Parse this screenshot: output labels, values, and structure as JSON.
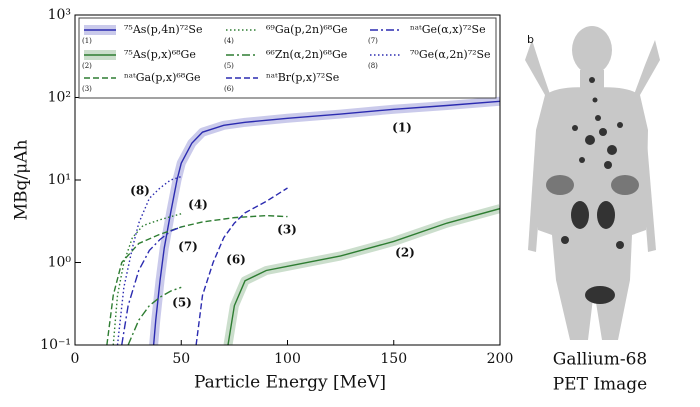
{
  "chart_data": {
    "type": "line",
    "xlabel": "Particle Energy [MeV]",
    "ylabel": "MBq/μAh",
    "log_y": true,
    "xlim": [
      0,
      200
    ],
    "xticks": [
      0,
      50,
      100,
      150,
      200
    ],
    "ylim": [
      0.1,
      1000
    ],
    "yticks": [
      {
        "value": 0.1,
        "label": "10⁻¹"
      },
      {
        "value": 1,
        "label": "10⁰"
      },
      {
        "value": 10,
        "label": "10¹"
      },
      {
        "value": 100,
        "label": "10²"
      },
      {
        "value": 1000,
        "label": "10³"
      }
    ],
    "series": [
      {
        "name": "⁷⁵As(p,4n)⁷²Se",
        "label": "(1)",
        "color": "#2b2bb0",
        "dash": "solid",
        "band": true,
        "x": [
          37,
          38,
          40,
          42,
          45,
          48,
          50,
          55,
          60,
          70,
          80,
          100,
          125,
          150,
          175,
          200
        ],
        "values": [
          0.1,
          0.2,
          0.6,
          1.5,
          4,
          10,
          16,
          28,
          38,
          46,
          50,
          56,
          63,
          72,
          80,
          90
        ]
      },
      {
        "name": "⁷⁵As(p,x)⁶⁸Ge",
        "label": "(2)",
        "color": "#2e7d32",
        "dash": "solid",
        "band": true,
        "x": [
          72,
          75,
          80,
          90,
          100,
          125,
          150,
          175,
          200
        ],
        "values": [
          0.1,
          0.3,
          0.6,
          0.8,
          0.9,
          1.2,
          1.8,
          3,
          4.5
        ]
      },
      {
        "name": "ⁿᵃᵗGa(p,x)⁶⁸Ge",
        "label": "(3)",
        "color": "#2e7d32",
        "dash": "dashed",
        "band": false,
        "x": [
          15,
          18,
          22,
          30,
          40,
          50,
          60,
          75,
          90,
          100
        ],
        "values": [
          0.1,
          0.4,
          1,
          1.7,
          2.2,
          2.7,
          3.1,
          3.5,
          3.7,
          3.6
        ]
      },
      {
        "name": "⁶⁹Ga(p,2n)⁶⁸Ge",
        "label": "(4)",
        "color": "#2e7d32",
        "dash": "dotted",
        "band": false,
        "x": [
          18,
          20,
          23,
          27,
          32,
          40,
          50
        ],
        "values": [
          0.1,
          0.4,
          1,
          2,
          2.8,
          3.3,
          3.9
        ]
      },
      {
        "name": "⁶⁶Zn(α,2n)⁶⁸Ge",
        "label": "(5)",
        "color": "#2e7d32",
        "dash": "dashdot",
        "band": false,
        "x": [
          25,
          30,
          35,
          40,
          45,
          50
        ],
        "values": [
          0.1,
          0.2,
          0.3,
          0.38,
          0.45,
          0.5
        ]
      },
      {
        "name": "ⁿᵃᵗBr(p,x)⁷²Se",
        "label": "(6)",
        "color": "#2b2bb0",
        "dash": "dashed",
        "band": false,
        "x": [
          57,
          60,
          65,
          70,
          75,
          80,
          90,
          100
        ],
        "values": [
          0.1,
          0.4,
          1,
          2,
          3,
          4,
          5.5,
          8
        ]
      },
      {
        "name": "ⁿᵃᵗGe(α,x)⁷²Se",
        "label": "(7)",
        "color": "#2b2bb0",
        "dash": "dashdot",
        "band": false,
        "x": [
          22,
          25,
          30,
          35,
          40,
          45,
          50
        ],
        "values": [
          0.1,
          0.3,
          0.8,
          1.4,
          1.9,
          2.4,
          2.7
        ]
      },
      {
        "name": "⁷⁰Ge(α,2n)⁷²Se",
        "label": "(8)",
        "color": "#2b2bb0",
        "dash": "dotted",
        "band": false,
        "x": [
          20,
          23,
          27,
          30,
          35,
          40,
          45,
          50
        ],
        "values": [
          0.1,
          0.5,
          1.5,
          3,
          6,
          8,
          10,
          11
        ]
      }
    ]
  },
  "image": {
    "panel_label": "b",
    "caption": [
      "Gallium-68",
      "PET Image"
    ]
  }
}
